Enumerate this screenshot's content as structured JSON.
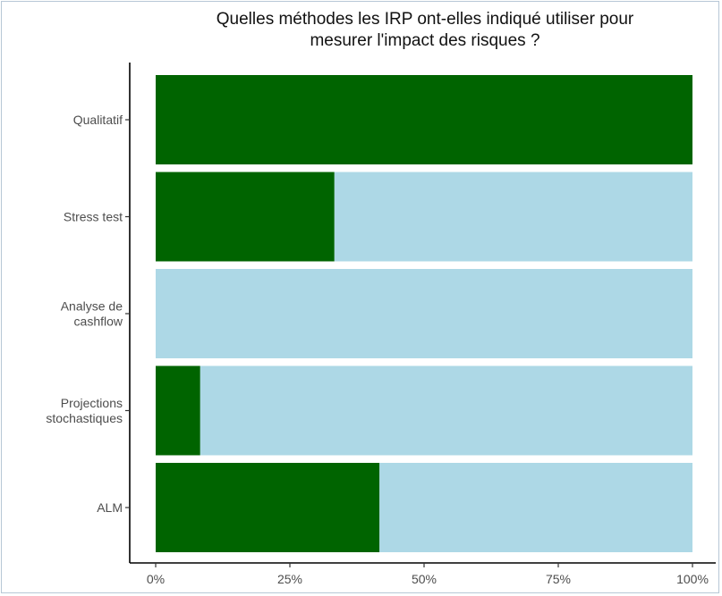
{
  "chart_data": {
    "type": "bar",
    "orientation": "horizontal",
    "stacked": true,
    "title_lines": [
      "Quelles méthodes les IRP ont-elles indiqué utiliser pour",
      "mesurer l'impact des risques ?"
    ],
    "categories": [
      [
        "Qualitatif"
      ],
      [
        "Stress test"
      ],
      [
        "Analyse de",
        "cashflow"
      ],
      [
        "Projections",
        "stochastiques"
      ],
      [
        "ALM"
      ]
    ],
    "series": [
      {
        "values": [
          100,
          33.3,
          0,
          8.3,
          41.7
        ],
        "color": "#006400"
      },
      {
        "values": [
          0,
          66.7,
          100,
          91.7,
          58.3
        ],
        "color": "#add8e6"
      }
    ],
    "xlim": [
      0,
      100
    ],
    "x_ticks": [
      "0%",
      "25%",
      "50%",
      "75%",
      "100%"
    ],
    "x_tick_values": [
      0,
      25,
      50,
      75,
      100
    ],
    "grid": false,
    "legend": "none"
  }
}
